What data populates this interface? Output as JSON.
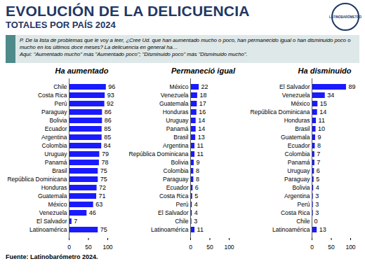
{
  "header": {
    "title": "EVOLUCIÓN DE LA DELICUENCIA",
    "subtitle": "TOTALES POR PAÍS 2024",
    "logo": "LATINOBARÓMETRO"
  },
  "question": {
    "text": "P. De la lista de problemas que le voy a leer, ¿Cree Ud. que han aumentado mucho o poco, han permanecido igual o han disminuido poco o mucho en los últimos doce meses? La delicuencia en general ha…",
    "note": "Aquí: \"Aumentado mucho\" más \"Aumentado poco\"; \"Disminuido poco\" más \"Disminuido mucho\"."
  },
  "chart_data": [
    {
      "type": "bar",
      "title": "Ha aumentado",
      "orientation": "horizontal",
      "data_labels": true,
      "color": "#1a1aff",
      "categories": [
        "Chile",
        "Costa Rica",
        "Perú",
        "Paraguay",
        "Bolivia",
        "Ecuador",
        "Argentina",
        "Colombia",
        "Uruguay",
        "Panamá",
        "Brasil",
        "República Dominicana",
        "Honduras",
        "Guatemala",
        "México",
        "Venezuela",
        "El Salvador",
        "Latinoamérica"
      ],
      "values": [
        96,
        93,
        92,
        86,
        86,
        85,
        85,
        84,
        79,
        78,
        75,
        75,
        72,
        71,
        63,
        46,
        7,
        75
      ],
      "xlim": [
        0,
        100
      ],
      "xticks": [
        0,
        50,
        100
      ]
    },
    {
      "type": "bar",
      "title": "Permaneció igual",
      "orientation": "horizontal",
      "data_labels": true,
      "color": "#1a1aff",
      "categories": [
        "México",
        "Venezuela",
        "Guatemala",
        "Honduras",
        "Uruguay",
        "Panamá",
        "Brasil",
        "Argentina",
        "República Dominicana",
        "Bolivia",
        "Colombia",
        "Paraguay",
        "Ecuador",
        "Costa Rica",
        "Perú",
        "El Salvador",
        "Chile",
        "Latinoamérica"
      ],
      "values": [
        22,
        18,
        17,
        16,
        14,
        14,
        13,
        11,
        11,
        9,
        8,
        8,
        6,
        5,
        4,
        4,
        3,
        11
      ],
      "xlim": [
        0,
        100
      ],
      "xticks": [
        0,
        50,
        100
      ]
    },
    {
      "type": "bar",
      "title": "Ha disminuido",
      "orientation": "horizontal",
      "data_labels": true,
      "color": "#1a1aff",
      "categories": [
        "El Salvador",
        "Venezuela",
        "México",
        "República Dominicana",
        "Honduras",
        "Brasil",
        "Guatemala",
        "Ecuador",
        "Colombia",
        "Panamá",
        "Uruguay",
        "Paraguay",
        "Bolivia",
        "Argentina",
        "Perú",
        "Costa Rica",
        "Chile",
        "Latinoamérica"
      ],
      "values": [
        89,
        34,
        15,
        14,
        11,
        10,
        9,
        8,
        7,
        7,
        6,
        5,
        4,
        3,
        3,
        3,
        0,
        13
      ],
      "xlim": [
        0,
        100
      ],
      "xticks": [
        0,
        50,
        100
      ]
    }
  ],
  "footer": {
    "source": "Fuente: Latinobarómetro 2024."
  }
}
